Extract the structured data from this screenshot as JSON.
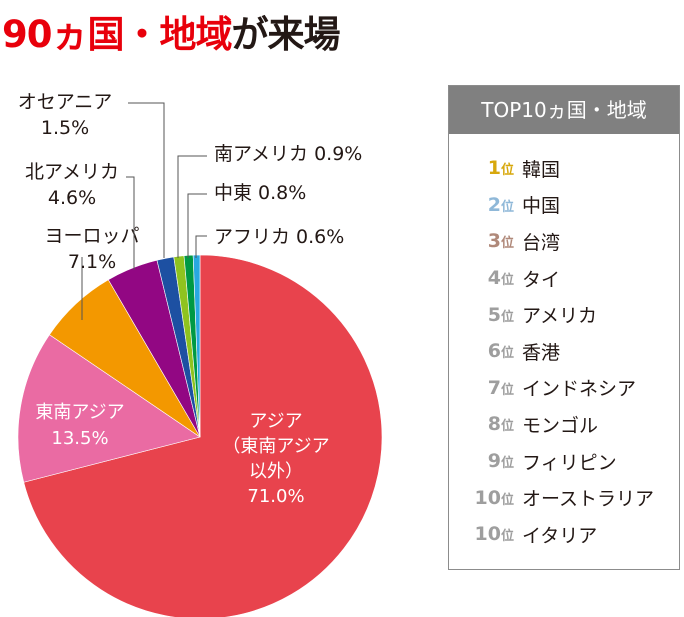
{
  "title": {
    "highlight": "90ヵ国・地域",
    "rest": "が来場"
  },
  "chart_data": {
    "type": "pie",
    "title": "90ヵ国・地域が来場",
    "slices": [
      {
        "label": "アジア",
        "label_lines": [
          "アジア",
          "（東南アジア",
          "以外）"
        ],
        "value": 71.0,
        "value_text": "71.0%",
        "color": "#e8434d"
      },
      {
        "label": "東南アジア",
        "label_lines": [
          "東南アジア"
        ],
        "value": 13.5,
        "value_text": "13.5%",
        "color": "#ea6ba3"
      },
      {
        "label": "ヨーロッパ",
        "label_lines": [
          "ヨーロッパ"
        ],
        "value": 7.1,
        "value_text": "7.1%",
        "color": "#f39800"
      },
      {
        "label": "北アメリカ",
        "label_lines": [
          "北アメリカ"
        ],
        "value": 4.6,
        "value_text": "4.6%",
        "color": "#920783"
      },
      {
        "label": "オセアニア",
        "label_lines": [
          "オセアニア"
        ],
        "value": 1.5,
        "value_text": "1.5%",
        "color": "#1d50a2"
      },
      {
        "label": "南アメリカ",
        "label_lines": [
          "南アメリカ"
        ],
        "value": 0.9,
        "value_text": "0.9%",
        "color": "#8fc31f"
      },
      {
        "label": "中東",
        "label_lines": [
          "中東"
        ],
        "value": 0.8,
        "value_text": "0.8%",
        "color": "#009944"
      },
      {
        "label": "アフリカ",
        "label_lines": [
          "アフリカ"
        ],
        "value": 0.6,
        "value_text": "0.6%",
        "color": "#29a8e0"
      }
    ]
  },
  "ranking": {
    "heading": "TOP10ヵ国・地域",
    "unit": "位",
    "items": [
      {
        "rank": "1",
        "name": "韓国",
        "color": "#d7a80d"
      },
      {
        "rank": "2",
        "name": "中国",
        "color": "#8fb8d8"
      },
      {
        "rank": "3",
        "name": "台湾",
        "color": "#b0897a"
      },
      {
        "rank": "4",
        "name": "タイ",
        "color": "#9e9e9e"
      },
      {
        "rank": "5",
        "name": "アメリカ",
        "color": "#9e9e9e"
      },
      {
        "rank": "6",
        "name": "香港",
        "color": "#9e9e9e"
      },
      {
        "rank": "7",
        "name": "インドネシア",
        "color": "#9e9e9e"
      },
      {
        "rank": "8",
        "name": "モンゴル",
        "color": "#9e9e9e"
      },
      {
        "rank": "9",
        "name": "フィリピン",
        "color": "#9e9e9e"
      },
      {
        "rank": "10",
        "name": "オーストラリア",
        "color": "#9e9e9e"
      },
      {
        "rank": "10",
        "name": "イタリア",
        "color": "#9e9e9e"
      }
    ]
  }
}
